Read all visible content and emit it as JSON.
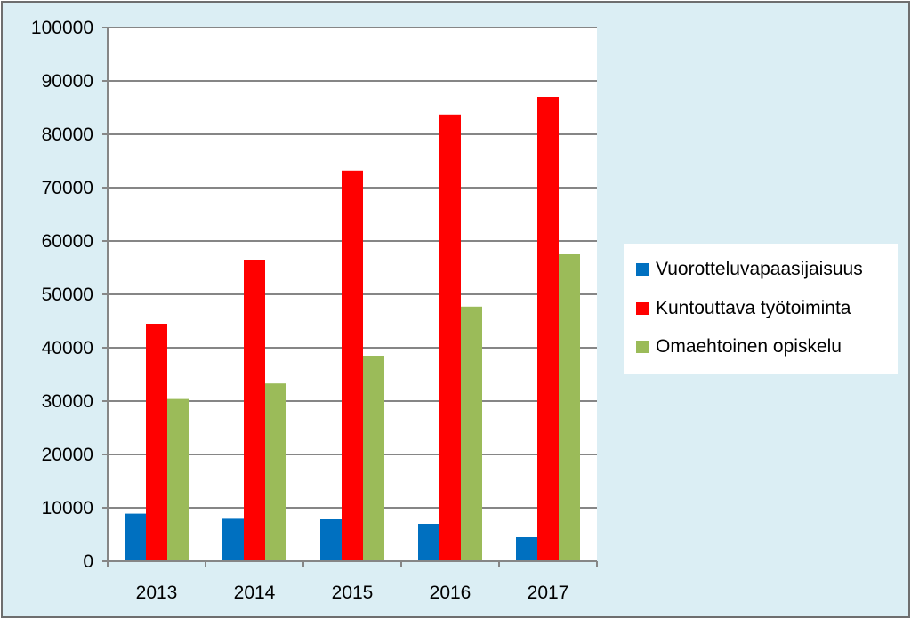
{
  "chart_data": {
    "type": "bar",
    "categories": [
      "2013",
      "2014",
      "2015",
      "2016",
      "2017"
    ],
    "series": [
      {
        "name": "Vuorotteluvapaasijaisuus",
        "color": "#0070c0",
        "values": [
          8900,
          8100,
          7900,
          7000,
          4500
        ]
      },
      {
        "name": "Kuntouttava työtoiminta",
        "color": "#ff0000",
        "values": [
          44500,
          56500,
          73200,
          83700,
          87000
        ]
      },
      {
        "name": "Omaehtoinen opiskelu",
        "color": "#9bbb59",
        "values": [
          30400,
          33300,
          38500,
          47700,
          57500
        ]
      }
    ],
    "ylim": [
      0,
      100000
    ],
    "yticks": [
      0,
      10000,
      20000,
      30000,
      40000,
      50000,
      60000,
      70000,
      80000,
      90000,
      100000
    ],
    "grid": true,
    "legend_position": "right",
    "plot_background": "#ffffff",
    "chart_background": "#dbeef4",
    "title": "",
    "xlabel": "",
    "ylabel": ""
  }
}
